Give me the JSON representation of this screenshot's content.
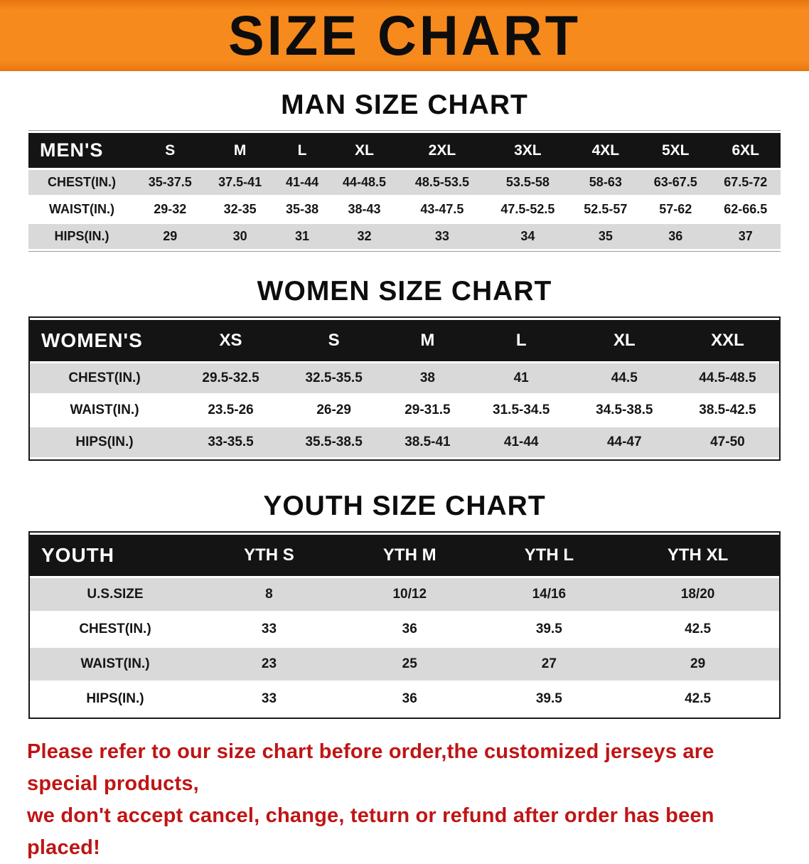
{
  "banner": {
    "title": "SIZE CHART"
  },
  "sections": {
    "men": {
      "heading": "MAN SIZE CHART",
      "table": {
        "header": [
          "MEN'S",
          "S",
          "M",
          "L",
          "XL",
          "2XL",
          "3XL",
          "4XL",
          "5XL",
          "6XL"
        ],
        "rows": [
          [
            "CHEST(IN.)",
            "35-37.5",
            "37.5-41",
            "41-44",
            "44-48.5",
            "48.5-53.5",
            "53.5-58",
            "58-63",
            "63-67.5",
            "67.5-72"
          ],
          [
            "WAIST(IN.)",
            "29-32",
            "32-35",
            "35-38",
            "38-43",
            "43-47.5",
            "47.5-52.5",
            "52.5-57",
            "57-62",
            "62-66.5"
          ],
          [
            "HIPS(IN.)",
            "29",
            "30",
            "31",
            "32",
            "33",
            "34",
            "35",
            "36",
            "37"
          ]
        ]
      }
    },
    "women": {
      "heading": "WOMEN SIZE CHART",
      "table": {
        "header": [
          "WOMEN'S",
          "XS",
          "S",
          "M",
          "L",
          "XL",
          "XXL"
        ],
        "rows": [
          [
            "CHEST(IN.)",
            "29.5-32.5",
            "32.5-35.5",
            "38",
            "41",
            "44.5",
            "44.5-48.5"
          ],
          [
            "WAIST(IN.)",
            "23.5-26",
            "26-29",
            "29-31.5",
            "31.5-34.5",
            "34.5-38.5",
            "38.5-42.5"
          ],
          [
            "HIPS(IN.)",
            "33-35.5",
            "35.5-38.5",
            "38.5-41",
            "41-44",
            "44-47",
            "47-50"
          ]
        ]
      }
    },
    "youth": {
      "heading": "YOUTH SIZE CHART",
      "table": {
        "header": [
          "YOUTH",
          "YTH S",
          "YTH M",
          "YTH L",
          "YTH XL"
        ],
        "rows": [
          [
            "U.S.SIZE",
            "8",
            "10/12",
            "14/16",
            "18/20"
          ],
          [
            "CHEST(IN.)",
            "33",
            "36",
            "39.5",
            "42.5"
          ],
          [
            "WAIST(IN.)",
            "23",
            "25",
            "27",
            "29"
          ],
          [
            "HIPS(IN.)",
            "33",
            "36",
            "39.5",
            "42.5"
          ]
        ]
      }
    }
  },
  "footer": {
    "lines": [
      "Please refer to our size chart before order,the customized jerseys are special products,",
      "we don't accept cancel, change, teturn or refund after order has been placed!"
    ]
  },
  "colors": {
    "accent_orange": "#F78A1C",
    "header_black": "#141414",
    "row_gray": "#D9D9D9",
    "notice_red": "#C01414"
  }
}
